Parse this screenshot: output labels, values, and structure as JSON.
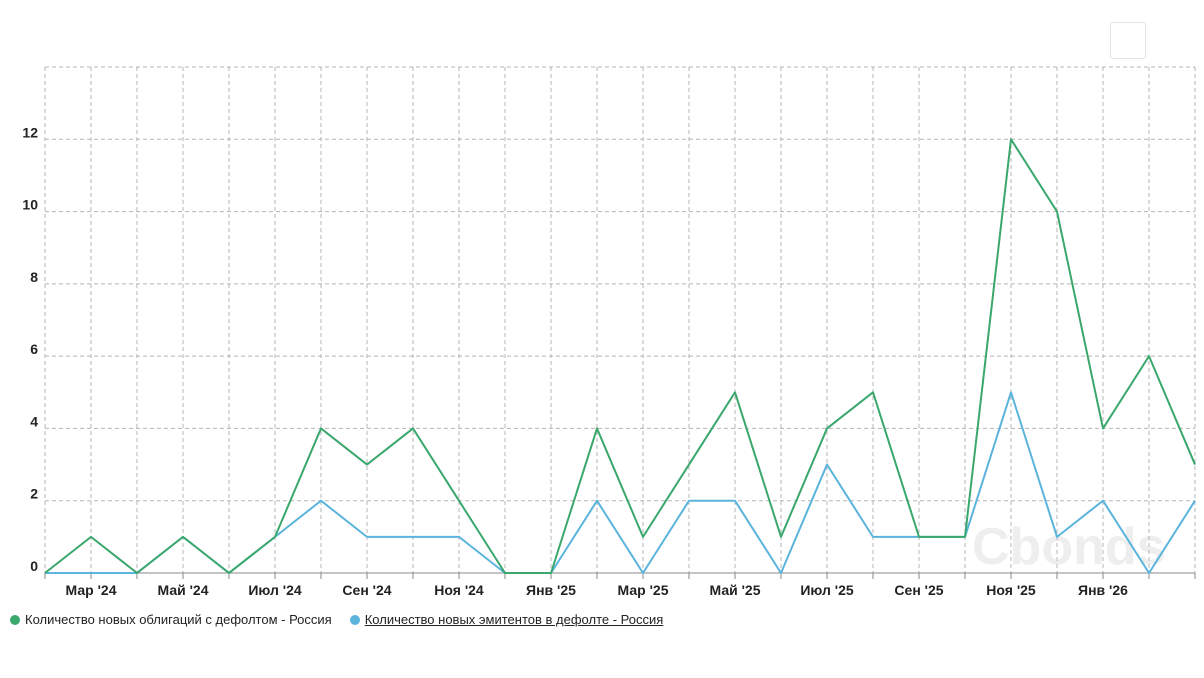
{
  "watermark": "Cbonds",
  "colors": {
    "series1": "#3aa76d",
    "series2": "#5ab4dc",
    "grid": "#b5b5b5",
    "axis": "#888888"
  },
  "chart_data": {
    "type": "line",
    "x": [
      "Фев '24",
      "Мар '24",
      "Апр '24",
      "Май '24",
      "Июн '24",
      "Июл '24",
      "Авг '24",
      "Сен '24",
      "Окт '24",
      "Ноя '24",
      "Дек '24",
      "Янв '25",
      "Фев '25",
      "Мар '25",
      "Апр '25",
      "Май '25",
      "Июн '25",
      "Июл '25",
      "Авг '25",
      "Сен '25",
      "Окт '25",
      "Ноя '25",
      "Дек '25",
      "Янв '26",
      "Фев '26",
      "Мар '26"
    ],
    "x_tick_labels": [
      "Мар '24",
      "Май '24",
      "Июл '24",
      "Сен '24",
      "Ноя '24",
      "Янв '25",
      "Мар '25",
      "Май '25",
      "Июл '25",
      "Сен '25",
      "Ноя '25",
      "Янв '26"
    ],
    "y_ticks": [
      0,
      2,
      4,
      6,
      8,
      10,
      12
    ],
    "ylim": [
      0,
      14
    ],
    "grid": true,
    "legend_position": "bottom-left",
    "series": [
      {
        "name": "Количество новых облигаций с дефолтом - Россия",
        "values": [
          0,
          1,
          0,
          1,
          0,
          1,
          4,
          3,
          4,
          2,
          0,
          0,
          4,
          1,
          3,
          5,
          1,
          4,
          5,
          1,
          1,
          12,
          10,
          4,
          6,
          3
        ]
      },
      {
        "name": "Количество новых эмитентов в дефолте - Россия",
        "values": [
          0,
          0,
          0,
          1,
          0,
          1,
          2,
          1,
          1,
          1,
          0,
          0,
          2,
          0,
          2,
          2,
          0,
          3,
          1,
          1,
          1,
          5,
          1,
          2,
          0,
          2
        ]
      }
    ]
  }
}
